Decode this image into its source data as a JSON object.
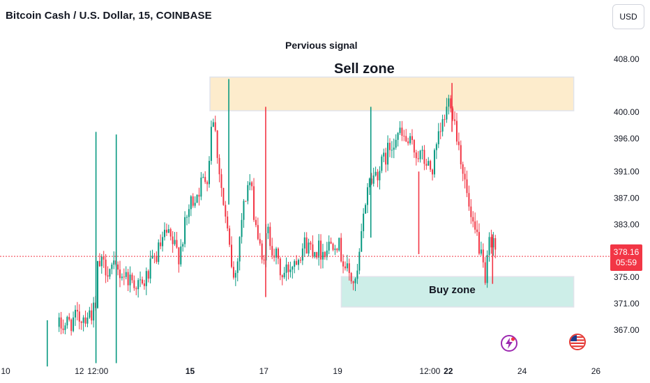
{
  "header": {
    "title": "Bitcoin Cash / U.S. Dollar, 15, COINBASE",
    "currency_button": "USD"
  },
  "annotations": {
    "previous_signal": "Pervious signal",
    "sell_zone": "Sell zone",
    "buy_zone": "Buy zone"
  },
  "price_tag": {
    "price": "378.16",
    "countdown": "05:59",
    "color": "#f23645"
  },
  "colors": {
    "up": "#089981",
    "down": "#f23645",
    "sell_zone": "#fdeccc",
    "buy_zone": "#cdeee8"
  },
  "icons": [
    "lightning-event-icon",
    "us-flag-event-icon"
  ],
  "chart_data": {
    "type": "candlestick",
    "title": "Bitcoin Cash / U.S. Dollar, 15, COINBASE",
    "x_tick_labels": [
      "10",
      "12",
      "12:00",
      "15",
      "17",
      "19",
      "12:00",
      "22",
      "24",
      "26"
    ],
    "x_tick_bold": [
      "15",
      "22"
    ],
    "y_tick_labels": [
      "408.00",
      "400.00",
      "396.00",
      "391.00",
      "387.00",
      "383.00",
      "379.00",
      "375.00",
      "371.00",
      "367.00"
    ],
    "ylim": [
      362.5,
      411
    ],
    "last_price": 378.16,
    "zones": [
      {
        "name": "Sell zone",
        "x_range": [
          "15.54",
          "25.4"
        ],
        "y_range": [
          400.2,
          405.3
        ]
      },
      {
        "name": "Buy zone",
        "x_range": [
          "19.1",
          "25.4"
        ],
        "y_range": [
          370.5,
          375.1
        ]
      }
    ],
    "path_days": [
      11.45,
      12.45,
      12.5,
      13.2,
      13.7,
      14.35,
      14.7,
      15.0,
      15.5,
      15.6,
      15.9,
      16.2,
      16.4,
      16.6,
      16.95,
      17.1,
      17.5,
      18.1,
      18.6,
      18.95,
      19.25,
      19.5,
      19.8,
      20.2,
      20.6,
      21.3,
      21.55,
      21.75,
      22.05,
      22.35,
      22.65,
      22.8,
      22.9,
      23.0,
      23.1,
      23.2,
      23.3
    ],
    "path_prices": [
      367.5,
      370.0,
      377.0,
      375.5,
      373.5,
      381.5,
      378.5,
      386.0,
      391.0,
      401.0,
      386.0,
      374.0,
      384.0,
      390.0,
      377.0,
      382.0,
      375.0,
      380.0,
      379.0,
      381.0,
      376.0,
      373.5,
      389.0,
      392.0,
      397.0,
      393.0,
      391.0,
      396.0,
      402.5,
      393.0,
      382.0,
      381.0,
      377.5,
      373.5,
      380.0,
      381.5,
      378.16
    ],
    "spikes": [
      {
        "day": 11.13,
        "high": 368.5,
        "low": 361.5
      },
      {
        "day": 12.45,
        "high": 397.0,
        "low": 362.0
      },
      {
        "day": 13.0,
        "high": 396.6,
        "low": 362.0
      },
      {
        "day": 16.05,
        "high": 405.0,
        "low": 386.0
      },
      {
        "day": 17.05,
        "high": 400.8,
        "low": 372.0
      },
      {
        "day": 19.9,
        "high": 400.8,
        "low": 381.0
      },
      {
        "day": 21.2,
        "high": 391.0,
        "low": 378.5
      },
      {
        "day": 22.1,
        "high": 404.4,
        "low": 397.0
      },
      {
        "day": 23.2,
        "high": 381.5,
        "low": 374.0
      }
    ]
  }
}
